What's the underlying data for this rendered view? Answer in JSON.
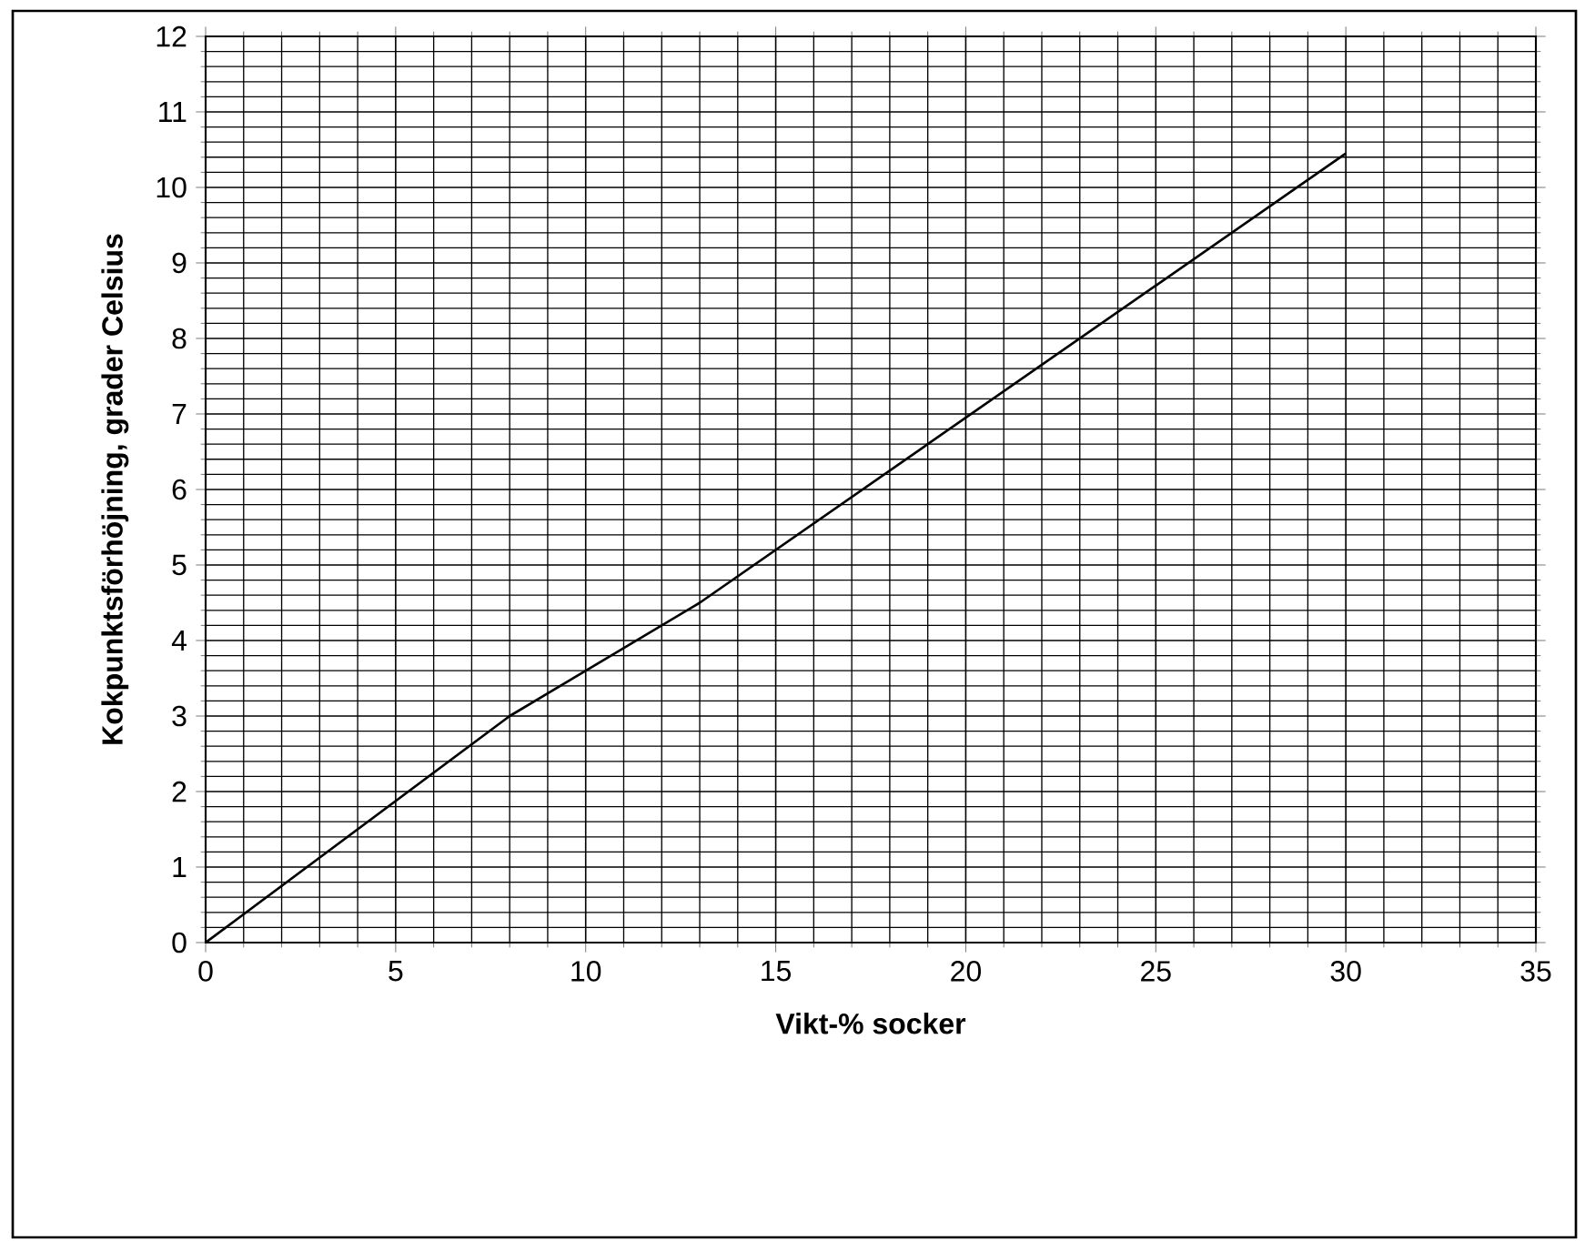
{
  "chart_data": {
    "type": "line",
    "xlabel": "Vikt-% socker",
    "ylabel": "Kokpunktsförhöjning, grader Celsius",
    "x": [
      0,
      8,
      13,
      30
    ],
    "series": [
      {
        "color": "#000000",
        "values": [
          0,
          3,
          4.5,
          10.45
        ]
      }
    ],
    "xlim": [
      0,
      35
    ],
    "ylim": [
      0,
      12
    ],
    "xticks": [
      0,
      5,
      10,
      15,
      20,
      25,
      30,
      35
    ],
    "yticks": [
      0,
      1,
      2,
      3,
      4,
      5,
      6,
      7,
      8,
      9,
      10,
      11,
      12
    ],
    "grid": true,
    "marker": "none",
    "line_style": "solid"
  }
}
